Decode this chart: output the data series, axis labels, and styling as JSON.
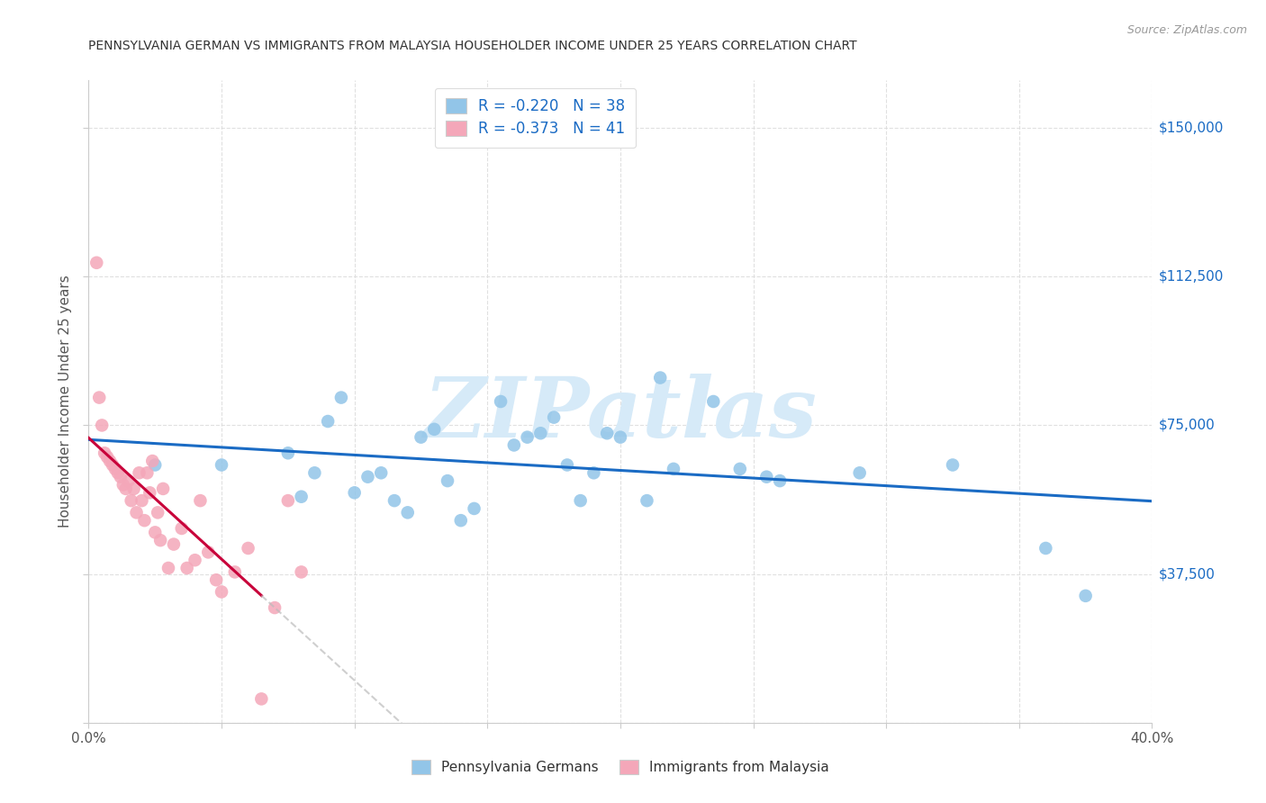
{
  "title": "PENNSYLVANIA GERMAN VS IMMIGRANTS FROM MALAYSIA HOUSEHOLDER INCOME UNDER 25 YEARS CORRELATION CHART",
  "source": "Source: ZipAtlas.com",
  "ylabel": "Householder Income Under 25 years",
  "xlim": [
    0.0,
    0.4
  ],
  "ylim": [
    0,
    162000
  ],
  "yticks": [
    0,
    37500,
    75000,
    112500,
    150000
  ],
  "ytick_labels": [
    "",
    "$37,500",
    "$75,000",
    "$112,500",
    "$150,000"
  ],
  "xticks": [
    0.0,
    0.05,
    0.1,
    0.15,
    0.2,
    0.25,
    0.3,
    0.35,
    0.4
  ],
  "xtick_labels": [
    "0.0%",
    "",
    "",
    "",
    "",
    "",
    "",
    "",
    "40.0%"
  ],
  "legend1_r": "R = -0.220",
  "legend1_n": "N = 38",
  "legend2_r": "R = -0.373",
  "legend2_n": "N = 41",
  "legend_bottom_label1": "Pennsylvania Germans",
  "legend_bottom_label2": "Immigrants from Malaysia",
  "blue_color": "#92C5E8",
  "pink_color": "#F4A7B9",
  "blue_line_color": "#1A6BC4",
  "pink_line_color": "#C8003A",
  "gray_line_color": "#BBBBBB",
  "watermark_color": "#D6EAF8",
  "background_color": "#FFFFFF",
  "blue_scatter_x": [
    0.025,
    0.05,
    0.075,
    0.08,
    0.085,
    0.09,
    0.095,
    0.1,
    0.105,
    0.11,
    0.115,
    0.12,
    0.125,
    0.13,
    0.135,
    0.14,
    0.145,
    0.155,
    0.16,
    0.165,
    0.17,
    0.175,
    0.18,
    0.185,
    0.19,
    0.195,
    0.2,
    0.21,
    0.215,
    0.22,
    0.235,
    0.245,
    0.255,
    0.26,
    0.29,
    0.325,
    0.36,
    0.375
  ],
  "blue_scatter_y": [
    65000,
    65000,
    68000,
    57000,
    63000,
    76000,
    82000,
    58000,
    62000,
    63000,
    56000,
    53000,
    72000,
    74000,
    61000,
    51000,
    54000,
    81000,
    70000,
    72000,
    73000,
    77000,
    65000,
    56000,
    63000,
    73000,
    72000,
    56000,
    87000,
    64000,
    81000,
    64000,
    62000,
    61000,
    63000,
    65000,
    44000,
    32000
  ],
  "pink_scatter_x": [
    0.003,
    0.004,
    0.005,
    0.006,
    0.007,
    0.008,
    0.009,
    0.01,
    0.011,
    0.012,
    0.013,
    0.014,
    0.015,
    0.016,
    0.017,
    0.018,
    0.019,
    0.02,
    0.021,
    0.022,
    0.023,
    0.024,
    0.025,
    0.026,
    0.027,
    0.028,
    0.03,
    0.032,
    0.035,
    0.037,
    0.04,
    0.042,
    0.045,
    0.048,
    0.05,
    0.055,
    0.06,
    0.065,
    0.07,
    0.075,
    0.08
  ],
  "pink_scatter_y": [
    116000,
    82000,
    75000,
    68000,
    67000,
    66000,
    65000,
    64000,
    63000,
    62000,
    60000,
    59000,
    61000,
    56000,
    59000,
    53000,
    63000,
    56000,
    51000,
    63000,
    58000,
    66000,
    48000,
    53000,
    46000,
    59000,
    39000,
    45000,
    49000,
    39000,
    41000,
    56000,
    43000,
    36000,
    33000,
    38000,
    44000,
    6000,
    29000,
    56000,
    38000
  ]
}
